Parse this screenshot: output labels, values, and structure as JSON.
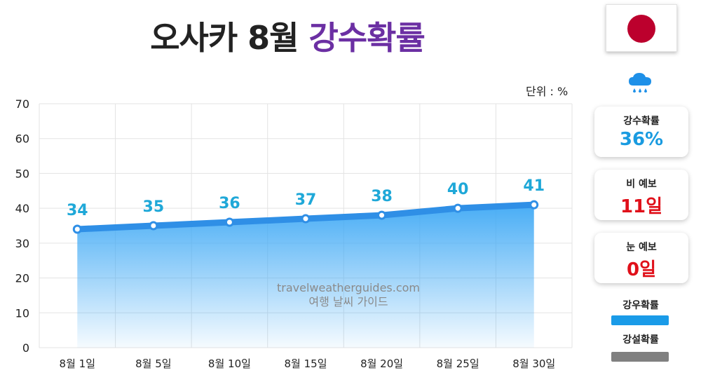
{
  "title": {
    "main": "오사카 8월",
    "accent": "강수확률"
  },
  "flag": {
    "name": "japan-flag",
    "colors": {
      "sun": "#bc002d"
    }
  },
  "unit_label": "단위 : %",
  "cards": [
    {
      "label": "강수확률",
      "value": "36%",
      "color": "#1a9be0"
    },
    {
      "label": "비 예보",
      "value": "11일",
      "color": "#e0101a"
    },
    {
      "label": "눈 예보",
      "value": "0일",
      "color": "#e0101a"
    }
  ],
  "legend": [
    {
      "label": "강우확률",
      "color": "#1a9be8"
    },
    {
      "label": "강설확률",
      "color": "#808080"
    }
  ],
  "watermark": {
    "line1": "travelweatherguides.com",
    "line2": "여행 날씨 가이드"
  },
  "chart_data": {
    "type": "area",
    "categories": [
      "8월 1일",
      "8월 5일",
      "8월 10일",
      "8월 15일",
      "8월 20일",
      "8월 25일",
      "8월 30일"
    ],
    "series": [
      {
        "name": "강우확률",
        "values": [
          34,
          35,
          36,
          37,
          38,
          40,
          41
        ],
        "color": "#2f8fe6"
      }
    ],
    "yticks": [
      0,
      10,
      20,
      30,
      40,
      50,
      60,
      70
    ],
    "ylim": [
      0,
      70
    ],
    "unit": "%",
    "grid": true,
    "label_color": "#1fa8d8"
  }
}
